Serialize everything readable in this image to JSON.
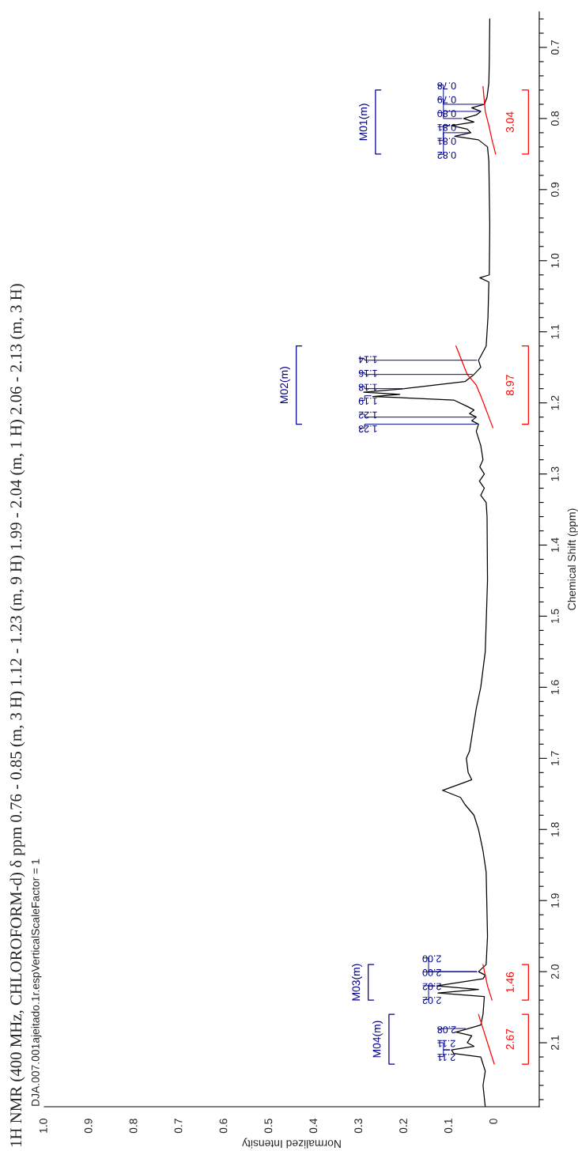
{
  "chart_data": {
    "type": "line",
    "title": "1H NMR (400 MHz, CHLOROFORM-d) δ ppm 0.76 - 0.85 (m, 3 H) 1.12 - 1.23 (m, 9 H) 1.99 - 2.04 (m, 1 H) 2.06 - 2.13 (m, 3 H)",
    "subtitle": "DJA.007.001ajeitado.1r.espVerticalScaleFactor = 1",
    "xlabel": "Normalized Intensity",
    "ylabel": "Chemical Shift (ppm)",
    "xlim": [
      1.0,
      -0.1
    ],
    "ylim": [
      2.19,
      0.65
    ],
    "xticks": [
      0,
      0.1,
      0.2,
      0.3,
      0.4,
      0.5,
      0.6,
      0.7,
      0.8,
      0.9,
      {
        "value": 1.0,
        "label": "1.0"
      }
    ],
    "yticks": [
      0.7,
      0.8,
      0.9,
      {
        "value": 1.0,
        "label": "1.0"
      },
      1.1,
      1.2,
      1.3,
      1.4,
      1.5,
      1.6,
      1.7,
      1.8,
      1.9,
      {
        "value": 2.0,
        "label": "2.0"
      },
      2.1
    ],
    "series": [
      {
        "color": "#000000",
        "x": [
          0.01,
          0.011,
          0.012,
          0.016,
          0.022,
          0.05,
          0.03,
          0.04,
          0.068,
          0.045,
          0.095,
          0.06,
          0.052,
          0.088,
          0.035,
          0.015,
          0.012,
          0.01,
          0.011,
          0.032,
          0.012,
          0.014,
          0.018,
          0.035,
          0.03,
          0.045,
          0.065,
          0.2,
          0.29,
          0.21,
          0.27,
          0.09,
          0.06,
          0.045,
          0.055,
          0.04,
          0.05,
          0.035,
          0.04,
          0.03,
          0.025,
          0.032,
          0.022,
          0.033,
          0.022,
          0.03,
          0.018,
          0.016,
          0.015,
          0.02,
          0.03,
          0.04,
          0.05,
          0.055,
          0.062,
          0.058,
          0.05,
          0.115,
          0.075,
          0.065,
          0.045,
          0.035,
          0.025,
          0.018,
          0.015,
          0.018,
          0.035,
          0.02,
          0.025,
          0.128,
          0.035,
          0.125,
          0.022,
          0.025,
          0.03,
          0.085,
          0.05,
          0.06,
          0.045,
          0.095,
          0.09,
          0.03,
          0.02,
          0.025,
          0.02
        ],
        "values": [
          0.66,
          0.72,
          0.75,
          0.77,
          0.78,
          0.785,
          0.79,
          0.795,
          0.8,
          0.805,
          0.81,
          0.815,
          0.82,
          0.825,
          0.83,
          0.84,
          0.86,
          0.95,
          1.02,
          1.024,
          1.03,
          1.08,
          1.12,
          1.14,
          1.15,
          1.16,
          1.17,
          1.18,
          1.185,
          1.188,
          1.191,
          1.196,
          1.205,
          1.21,
          1.215,
          1.22,
          1.225,
          1.23,
          1.24,
          1.26,
          1.28,
          1.29,
          1.3,
          1.31,
          1.32,
          1.33,
          1.34,
          1.36,
          1.45,
          1.55,
          1.6,
          1.63,
          1.67,
          1.69,
          1.7,
          1.72,
          1.73,
          1.745,
          1.755,
          1.765,
          1.78,
          1.8,
          1.83,
          1.86,
          1.95,
          1.99,
          2.0,
          2.005,
          2.01,
          2.02,
          2.025,
          2.03,
          2.035,
          2.06,
          2.075,
          2.085,
          2.09,
          2.1,
          2.105,
          2.11,
          2.115,
          2.12,
          2.14,
          2.16,
          2.19
        ]
      },
      {
        "color": "#ff0000",
        "x": [
          0.025,
          0.02,
          0.012,
          0.005,
          -0.003
        ],
        "values": [
          0.755,
          0.79,
          0.81,
          0.83,
          0.85
        ]
      },
      {
        "color": "#ff0000",
        "x": [
          0.085,
          0.06,
          0.04,
          0.03,
          0.018,
          0.003
        ],
        "values": [
          1.12,
          1.16,
          1.175,
          1.19,
          1.21,
          1.235
        ]
      },
      {
        "color": "#ff0000",
        "x": [
          0.025,
          0.015,
          0.005
        ],
        "values": [
          1.99,
          2.02,
          2.04
        ]
      },
      {
        "color": "#ff0000",
        "x": [
          0.035,
          0.02,
          0.0
        ],
        "values": [
          2.06,
          2.09,
          2.13
        ]
      },
      {
        "name": "M01(m)",
        "color": "#00008b",
        "x": [
          0.252,
          0.264,
          0.264,
          0.252
        ],
        "values": [
          0.76,
          0.76,
          0.85,
          0.85
        ]
      },
      {
        "name": "3.04",
        "color": "#ff0000",
        "x": [
          -0.062,
          -0.076,
          -0.076,
          -0.062
        ],
        "values": [
          0.76,
          0.76,
          0.85,
          0.85
        ]
      },
      {
        "name": "M02(m)",
        "color": "#00008b",
        "x": [
          0.428,
          0.44,
          0.44,
          0.428
        ],
        "values": [
          1.12,
          1.12,
          1.23,
          1.23
        ]
      },
      {
        "name": "8.97",
        "color": "#ff0000",
        "x": [
          -0.062,
          -0.076,
          -0.076,
          -0.062
        ],
        "values": [
          1.12,
          1.12,
          1.23,
          1.23
        ]
      },
      {
        "name": "M03(m)",
        "color": "#00008b",
        "x": [
          0.268,
          0.28,
          0.28,
          0.268
        ],
        "values": [
          1.99,
          1.99,
          2.04,
          2.04
        ]
      },
      {
        "name": "1.46",
        "color": "#ff0000",
        "x": [
          -0.062,
          -0.076,
          -0.076,
          -0.062
        ],
        "values": [
          1.99,
          1.99,
          2.04,
          2.04
        ]
      },
      {
        "name": "M04(m)",
        "color": "#00008b",
        "x": [
          0.222,
          0.234,
          0.234,
          0.222
        ],
        "values": [
          2.06,
          2.06,
          2.13,
          2.13
        ]
      },
      {
        "name": "2.67",
        "color": "#ff0000",
        "x": [
          -0.062,
          -0.076,
          -0.076,
          -0.062
        ],
        "values": [
          2.06,
          2.06,
          2.13,
          2.13
        ]
      }
    ],
    "annotations": [
      {
        "text": "0.78",
        "x": 0.022,
        "y": 0.78
      },
      {
        "text": "0.79",
        "x": 0.03,
        "y": 0.79
      },
      {
        "text": "0.80",
        "x": 0.068,
        "y": 0.8
      },
      {
        "text": "0.81",
        "x": 0.095,
        "y": 0.81
      },
      {
        "text": "0.81",
        "x": 0.095,
        "y": 0.81
      },
      {
        "text": "0.82",
        "x": 0.052,
        "y": 0.82
      },
      {
        "text": "1.14",
        "x": 0.035,
        "y": 1.14
      },
      {
        "text": "1.16",
        "x": 0.045,
        "y": 1.16
      },
      {
        "text": "1.18",
        "x": 0.2,
        "y": 1.18
      },
      {
        "text": "1.19",
        "x": 0.27,
        "y": 1.19
      },
      {
        "text": "1.22",
        "x": 0.04,
        "y": 1.22
      },
      {
        "text": "1.23",
        "x": 0.035,
        "y": 1.23
      },
      {
        "text": "2.00",
        "x": 0.035,
        "y": 2.0
      },
      {
        "text": "2.00",
        "x": 0.035,
        "y": 2.0
      },
      {
        "text": "2.02",
        "x": 0.128,
        "y": 2.02
      },
      {
        "text": "2.02",
        "x": 0.128,
        "y": 2.02
      },
      {
        "text": "2.08",
        "x": 0.06,
        "y": 2.08
      },
      {
        "text": "2.11",
        "x": 0.095,
        "y": 2.11
      },
      {
        "text": "2.11",
        "x": 0.095,
        "y": 2.11
      }
    ]
  }
}
